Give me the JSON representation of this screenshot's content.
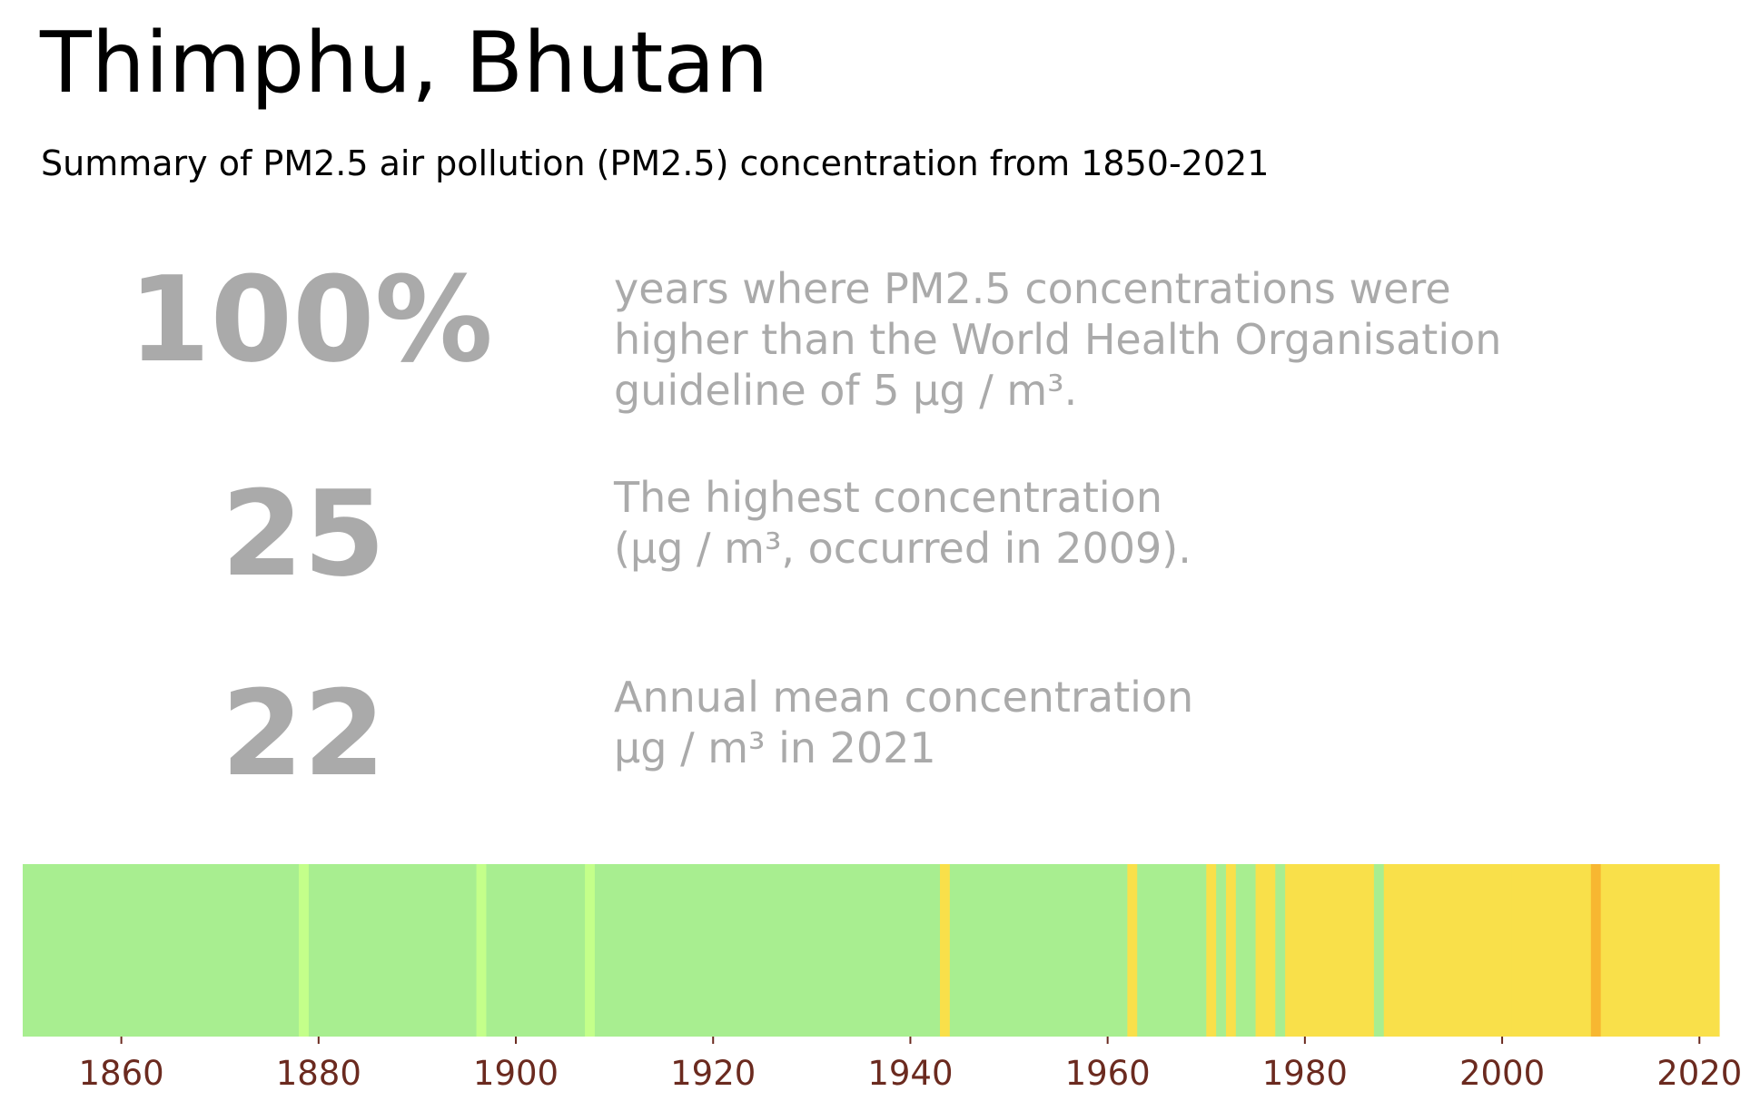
{
  "header": {
    "title": "Thimphu, Bhutan",
    "subtitle": "Summary of PM2.5 air pollution (PM2.5) concentration from 1850-2021"
  },
  "stats": [
    {
      "value": "100%",
      "lines": [
        "years where PM2.5 concentrations were",
        "higher than the World Health Organisation",
        "guideline of 5 µg / m³."
      ]
    },
    {
      "value": "25",
      "lines": [
        "The highest concentration",
        "(µg / m³, occurred in 2009)."
      ]
    },
    {
      "value": "22",
      "lines": [
        "Annual mean concentration",
        "µg / m³ in 2021"
      ]
    }
  ],
  "chart_data": {
    "type": "heatmap",
    "description_units": "annual PM2.5 concentration band per year, 1850-2021",
    "x_range": [
      1850,
      2022
    ],
    "xticks": [
      1860,
      1880,
      1900,
      1920,
      1940,
      1960,
      1980,
      2000,
      2020
    ],
    "colors": {
      "green": "#a8ee90",
      "lightgreen": "#c4ff8a",
      "yellow": "#f9e04a",
      "orange": "#f7b731",
      "tick_label": "#6b2a1f"
    },
    "default_band": "green",
    "years_band_overrides": [
      {
        "year": 1878,
        "band": "lightgreen"
      },
      {
        "year": 1896,
        "band": "lightgreen"
      },
      {
        "year": 1907,
        "band": "lightgreen"
      },
      {
        "year": 1943,
        "band": "yellow"
      },
      {
        "year": 1962,
        "band": "yellow"
      },
      {
        "year": 1970,
        "band": "yellow"
      },
      {
        "year": 1972,
        "band": "yellow"
      },
      {
        "year": 1975,
        "band": "yellow"
      },
      {
        "year": 1976,
        "band": "yellow"
      },
      {
        "year": 1978,
        "band": "yellow",
        "through": 1986
      },
      {
        "year": 1988,
        "band": "yellow",
        "through": 2008
      },
      {
        "year": 2009,
        "band": "orange"
      },
      {
        "year": 2010,
        "band": "yellow",
        "through": 2021
      }
    ]
  }
}
